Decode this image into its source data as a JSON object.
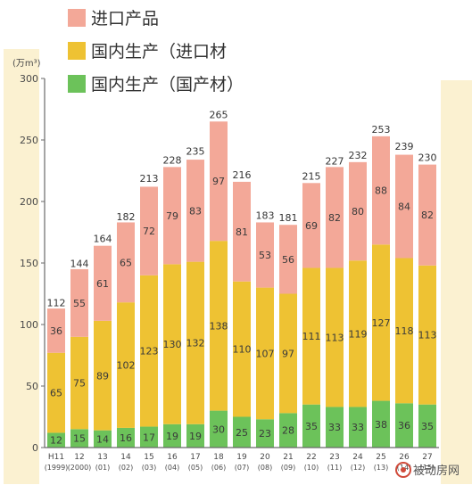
{
  "chart_data": {
    "type": "bar",
    "stacked": true,
    "unit_label": "(万m³)",
    "ylim": [
      0,
      300
    ],
    "yticks": [
      0,
      50,
      100,
      150,
      200,
      250,
      300
    ],
    "grid": false,
    "legend_position": "top-left",
    "categories": [
      {
        "year": "H11",
        "western": "1999"
      },
      {
        "year": "12",
        "western": "2000"
      },
      {
        "year": "13",
        "western": "01"
      },
      {
        "year": "14",
        "western": "02"
      },
      {
        "year": "15",
        "western": "03"
      },
      {
        "year": "16",
        "western": "04"
      },
      {
        "year": "17",
        "western": "05"
      },
      {
        "year": "18",
        "western": "06"
      },
      {
        "year": "19",
        "western": "07"
      },
      {
        "year": "20",
        "western": "08"
      },
      {
        "year": "21",
        "western": "09"
      },
      {
        "year": "22",
        "western": "10"
      },
      {
        "year": "23",
        "western": "11"
      },
      {
        "year": "24",
        "western": "12"
      },
      {
        "year": "25",
        "western": "13"
      },
      {
        "year": "26",
        "western": "14"
      },
      {
        "year": "27",
        "western": "15"
      }
    ],
    "series": [
      {
        "name": "国内生产（国产材）",
        "color": "#6cc25a",
        "values": [
          12,
          15,
          14,
          16,
          17,
          19,
          19,
          30,
          25,
          23,
          28,
          35,
          33,
          33,
          38,
          36,
          35
        ]
      },
      {
        "name": "国内生产（进口材）",
        "color": "#eec233",
        "values": [
          65,
          75,
          89,
          102,
          123,
          130,
          132,
          138,
          110,
          107,
          97,
          111,
          113,
          119,
          127,
          118,
          113
        ]
      },
      {
        "name": "进口产品",
        "color": "#f3a898",
        "values": [
          36,
          55,
          61,
          65,
          72,
          79,
          83,
          97,
          81,
          53,
          56,
          69,
          82,
          80,
          88,
          84,
          82
        ]
      }
    ],
    "totals": [
      112,
      144,
      164,
      182,
      213,
      228,
      235,
      265,
      216,
      183,
      181,
      215,
      227,
      232,
      253,
      239,
      230
    ],
    "legend_order": [
      "进口产品",
      "国内生产（进口材",
      "国内生产（国产材）"
    ],
    "watermark": "被动房网"
  },
  "colors": {
    "page_bg": "#ffffff",
    "panel_bg": "#fbf1d1",
    "axis": "#6a6a6a",
    "text": "#4a4a4a"
  }
}
